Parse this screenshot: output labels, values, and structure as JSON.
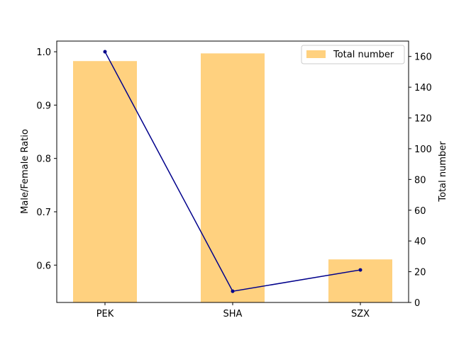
{
  "chart_data": {
    "type": "bar",
    "categories": [
      "PEK",
      "SHA",
      "SZX"
    ],
    "left_axis": {
      "label": "Male/Female Ratio",
      "ylim": [
        0.53,
        1.02
      ],
      "ticks": [
        0.6,
        0.7,
        0.8,
        0.9,
        1.0
      ],
      "tick_labels": [
        "0.6",
        "0.7",
        "0.8",
        "0.9",
        "1.0"
      ]
    },
    "right_axis": {
      "label": "Total number",
      "ylim": [
        0,
        170
      ],
      "ticks": [
        0,
        20,
        40,
        60,
        80,
        100,
        120,
        140,
        160
      ],
      "tick_labels": [
        "0",
        "20",
        "40",
        "60",
        "80",
        "100",
        "120",
        "140",
        "160"
      ]
    },
    "series": [
      {
        "name": "Total number",
        "type": "bar",
        "axis": "right",
        "values": [
          157,
          162,
          28
        ],
        "color": "#ffd17f"
      },
      {
        "type": "line",
        "axis": "left",
        "values": [
          1.0,
          0.551,
          0.591
        ],
        "color": "#00008b"
      }
    ],
    "legend": {
      "position": "top-right",
      "entries": [
        "Total number"
      ]
    },
    "grid": false
  }
}
